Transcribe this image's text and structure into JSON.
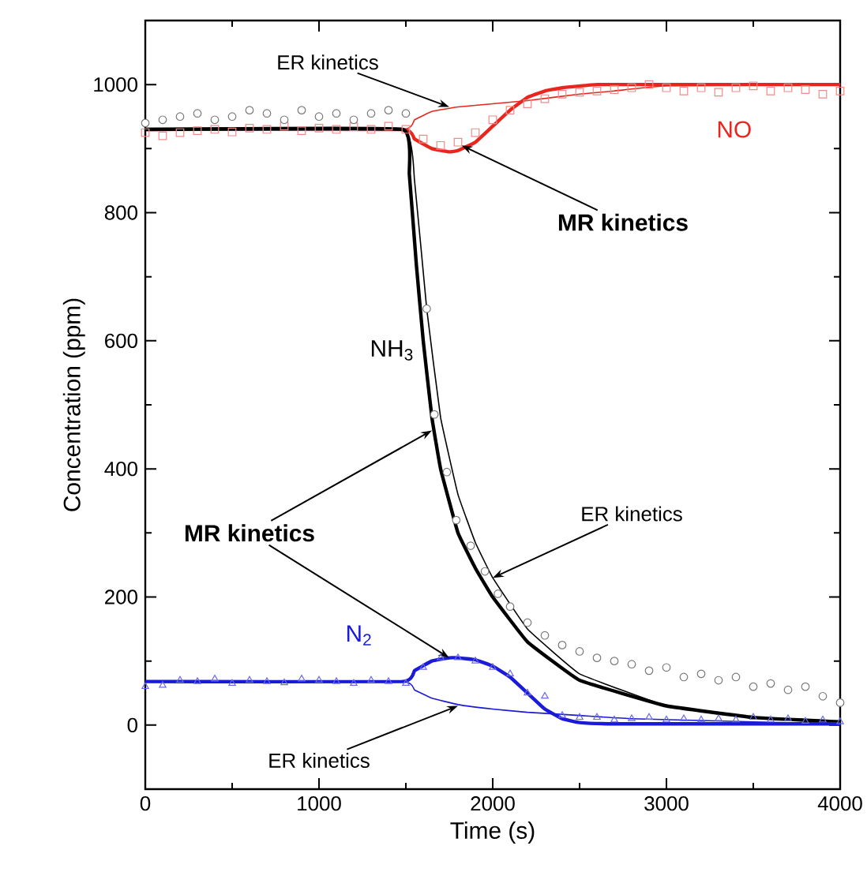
{
  "chart_data": {
    "type": "line",
    "xlabel": "Time (s)",
    "ylabel": "Concentration (ppm)",
    "xlim": [
      0,
      4000
    ],
    "ylim": [
      -100,
      1100
    ],
    "xticks": [
      0,
      1000,
      2000,
      3000,
      4000
    ],
    "yticks": [
      0,
      200,
      400,
      600,
      800,
      1000
    ],
    "series": [
      {
        "name": "NO",
        "type": "scatter",
        "marker": "square",
        "color": "#f08a8a",
        "x": [
          0,
          100,
          200,
          300,
          400,
          500,
          600,
          700,
          800,
          900,
          1000,
          1100,
          1200,
          1300,
          1400,
          1500,
          1600,
          1700,
          1800,
          1900,
          2000,
          2100,
          2200,
          2300,
          2400,
          2500,
          2600,
          2700,
          2800,
          2900,
          3000,
          3100,
          3200,
          3300,
          3400,
          3500,
          3600,
          3700,
          3800,
          3900,
          4000
        ],
        "values": [
          925,
          920,
          925,
          928,
          930,
          926,
          932,
          930,
          935,
          928,
          932,
          930,
          934,
          930,
          935,
          930,
          915,
          905,
          910,
          925,
          945,
          960,
          970,
          978,
          985,
          988,
          990,
          992,
          995,
          1000,
          995,
          990,
          995,
          988,
          995,
          998,
          990,
          995,
          992,
          985,
          990
        ]
      },
      {
        "color": "#e8261e",
        "x": [
          0,
          1480,
          1550,
          1650,
          1750,
          1800,
          1900,
          2000,
          2100,
          2200,
          2300,
          2400,
          2600,
          3000,
          4000
        ],
        "values": [
          930,
          930,
          915,
          900,
          895,
          897,
          910,
          935,
          960,
          980,
          990,
          995,
          1000,
          1000,
          1000
        ]
      },
      {
        "color": "#e8261e",
        "x": [
          0,
          1480,
          1550,
          1650,
          1800,
          2000,
          2200,
          2500,
          2700,
          3000,
          4000
        ],
        "values": [
          930,
          930,
          945,
          958,
          965,
          970,
          975,
          985,
          990,
          998,
          1000
        ]
      },
      {
        "name": "NH$_{3}$",
        "type": "scatter",
        "marker": "circle",
        "color": "#7a7a7a",
        "x": [
          0,
          100,
          200,
          300,
          400,
          500,
          600,
          700,
          800,
          900,
          1000,
          1100,
          1200,
          1300,
          1400,
          1500,
          1620,
          1664,
          1736,
          1790,
          1873,
          1955,
          2030,
          2100,
          2200,
          2300,
          2400,
          2500,
          2600,
          2700,
          2800,
          2900,
          3000,
          3100,
          3200,
          3300,
          3400,
          3500,
          3600,
          3700,
          3800,
          3900,
          4000
        ],
        "values": [
          940,
          945,
          950,
          955,
          945,
          950,
          960,
          955,
          945,
          960,
          950,
          955,
          945,
          955,
          960,
          955,
          650,
          485,
          395,
          320,
          280,
          240,
          205,
          185,
          160,
          140,
          125,
          115,
          105,
          100,
          95,
          85,
          90,
          75,
          80,
          70,
          75,
          60,
          65,
          55,
          60,
          45,
          35
        ]
      },
      {
        "color": "#000000",
        "x": [
          0,
          1480,
          1520,
          1560,
          1600,
          1650,
          1700,
          1800,
          1900,
          2000,
          2200,
          2500,
          3000,
          3500,
          4000
        ],
        "values": [
          930,
          930,
          860,
          720,
          600,
          480,
          400,
          300,
          245,
          200,
          130,
          70,
          30,
          12,
          5
        ]
      },
      {
        "color": "#000000",
        "x": [
          0,
          1480,
          1550,
          1620,
          1700,
          1800,
          1900,
          2000,
          2200,
          2500,
          3000,
          3500,
          4000
        ],
        "values": [
          930,
          930,
          850,
          650,
          480,
          360,
          285,
          230,
          150,
          80,
          30,
          12,
          5
        ]
      },
      {
        "name": "N$_{2}$",
        "type": "scatter",
        "marker": "triangle",
        "color": "#6a6ae8",
        "x": [
          0,
          100,
          200,
          300,
          400,
          500,
          600,
          700,
          800,
          900,
          1000,
          1100,
          1200,
          1300,
          1400,
          1500,
          1600,
          1700,
          1800,
          1900,
          2000,
          2100,
          2200,
          2300,
          2400,
          2500,
          2600,
          2700,
          2800,
          2900,
          3000,
          3100,
          3200,
          3300,
          3400,
          3500,
          3600,
          3700,
          3800,
          3900,
          4000
        ],
        "values": [
          60,
          62,
          70,
          68,
          72,
          65,
          70,
          68,
          66,
          72,
          70,
          68,
          65,
          70,
          68,
          65,
          90,
          105,
          105,
          100,
          90,
          80,
          50,
          45,
          15,
          12,
          12,
          8,
          10,
          12,
          8,
          10,
          8,
          10,
          8,
          12,
          8,
          10,
          6,
          8,
          5
        ]
      },
      {
        "color": "#1a1ad8",
        "x": [
          0,
          1480,
          1550,
          1650,
          1750,
          1800,
          1900,
          2000,
          2100,
          2200,
          2300,
          2400,
          2500,
          2700,
          4000
        ],
        "values": [
          68,
          68,
          85,
          100,
          105,
          105,
          102,
          92,
          75,
          50,
          25,
          10,
          4,
          2,
          2
        ]
      },
      {
        "color": "#1a1ad8",
        "x": [
          0,
          1480,
          1550,
          1650,
          1800,
          2000,
          2200,
          2500,
          2800,
          3500,
          4000
        ],
        "values": [
          68,
          68,
          55,
          42,
          32,
          25,
          20,
          15,
          10,
          5,
          2
        ]
      }
    ],
    "annotations": [
      {
        "text": "ER kinetics",
        "x": 1750,
        "y": 965
      },
      {
        "text": "**MR kinetics**",
        "x": 1820,
        "y": 905
      },
      {
        "text": "**MR kinetics**",
        "x": 1650,
        "y": 460
      },
      {
        "text": "ER kinetics",
        "x": 2000,
        "y": 230
      },
      {
        "text": "ER kinetics",
        "x": 1800,
        "y": 30
      }
    ]
  }
}
